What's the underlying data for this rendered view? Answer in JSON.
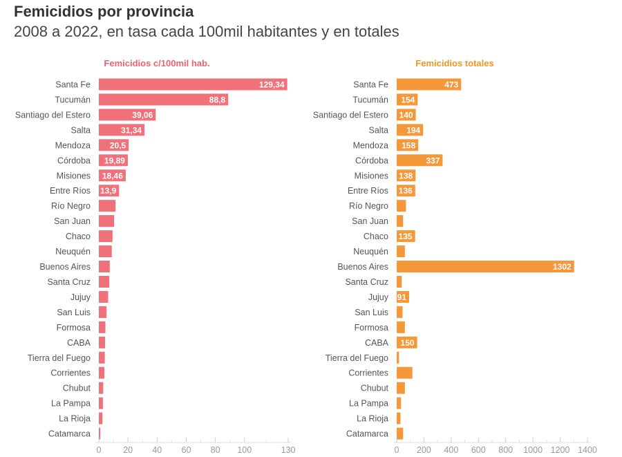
{
  "title": "Femicidios por provincia",
  "subtitle": "2008 a 2022, en tasa cada 100mil habitantes y en totales",
  "chart_data": [
    {
      "type": "bar",
      "orientation": "horizontal",
      "title": "Femicidios c/100mil hab.",
      "color": "#f0717a",
      "title_color": "#f0606c",
      "xlim": [
        0,
        130
      ],
      "ticks": [
        0,
        20,
        40,
        60,
        80,
        100,
        130
      ],
      "categories": [
        "Santa Fe",
        "Tucumán",
        "Santiago del Estero",
        "Salta",
        "Mendoza",
        "Córdoba",
        "Misiones",
        "Entre Ríos",
        "Río Negro",
        "San Juan",
        "Chaco",
        "Neuquén",
        "Buenos Aires",
        "Santa Cruz",
        "Jujuy",
        "San Luis",
        "Formosa",
        "CABA",
        "Tierra del Fuego",
        "Corrientes",
        "Chubut",
        "La Pampa",
        "La Rioja",
        "Catamarca"
      ],
      "values": [
        129.34,
        88.8,
        39.06,
        31.34,
        20.5,
        19.89,
        18.46,
        13.9,
        11.5,
        10.5,
        9.4,
        8.9,
        7.5,
        7.2,
        6.4,
        5.3,
        4.5,
        4.3,
        4.1,
        3.8,
        3.0,
        2.8,
        2.5,
        1.0
      ],
      "data_labels": [
        "129,34",
        "88,8",
        "39,06",
        "31,34",
        "20,5",
        "19,89",
        "18,46",
        "13,9",
        "",
        "",
        "",
        "",
        "",
        "",
        "",
        "",
        "",
        "",
        "",
        "",
        "",
        "",
        "",
        ""
      ]
    },
    {
      "type": "bar",
      "orientation": "horizontal",
      "title": "Femicidios totales",
      "color": "#f5983a",
      "title_color": "#f5931f",
      "xlim": [
        0,
        1400
      ],
      "ticks": [
        0,
        200,
        400,
        600,
        800,
        1000,
        1200,
        1400
      ],
      "categories": [
        "Santa Fe",
        "Tucumán",
        "Santiago del Estero",
        "Salta",
        "Mendoza",
        "Córdoba",
        "Misiones",
        "Entre Ríos",
        "Río Negro",
        "San Juan",
        "Chaco",
        "Neuquén",
        "Buenos Aires",
        "Santa Cruz",
        "Jujuy",
        "San Luis",
        "Formosa",
        "CABA",
        "Tierra del Fuego",
        "Corrientes",
        "Chubut",
        "La Pampa",
        "La Rioja",
        "Catamarca"
      ],
      "values": [
        473,
        154,
        140,
        194,
        158,
        337,
        138,
        136,
        68,
        47,
        135,
        60,
        1302,
        37,
        91,
        43,
        60,
        150,
        17,
        115,
        60,
        32,
        28,
        47
      ],
      "data_labels": [
        "473",
        "154",
        "140",
        "194",
        "158",
        "337",
        "138",
        "136",
        "",
        "",
        "135",
        "",
        "1302",
        "",
        "91",
        "",
        "",
        "150",
        "",
        "",
        "",
        "",
        "",
        ""
      ]
    }
  ]
}
